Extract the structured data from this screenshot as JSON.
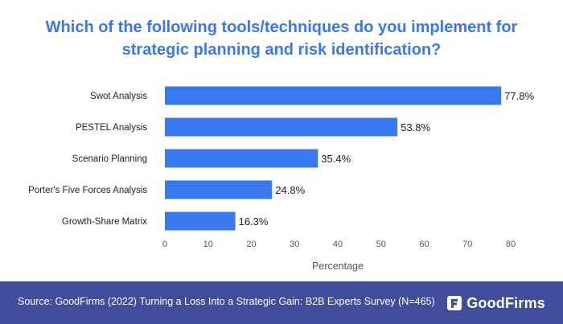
{
  "title_lines": [
    "Which of the following tools/techniques do you implement for",
    "strategic planning and risk identification?"
  ],
  "chart_data": {
    "type": "bar",
    "orientation": "horizontal",
    "title": "Which of the following tools/techniques do you implement for strategic planning and risk identification?",
    "categories": [
      "Swot Analysis",
      "PESTEL Analysis",
      "Scenario Planning",
      "Porter's Five Forces Analysis",
      "Growth-Share Matrix"
    ],
    "values": [
      77.8,
      53.8,
      35.4,
      24.8,
      16.3
    ],
    "value_labels": [
      "77.8%",
      "53.8%",
      "35.4%",
      "24.8%",
      "16.3%"
    ],
    "xlabel": "Percentage",
    "ylabel": "",
    "xlim": [
      0,
      80
    ],
    "xticks": [
      0,
      10,
      20,
      30,
      40,
      50,
      60,
      70,
      80
    ],
    "grid": false,
    "legend": "none",
    "bar_color": "#3a78f0"
  },
  "footer": {
    "source": "Source: GoodFirms (2022) Turning a Loss Into a Strategic Gain: B2B Experts Survey (N=465)",
    "brand": "GoodFirms",
    "background_color": "#3f4d9a"
  },
  "colors": {
    "title": "#3a78f0",
    "bars": "#3a78f0",
    "axis_text": "#555555"
  }
}
